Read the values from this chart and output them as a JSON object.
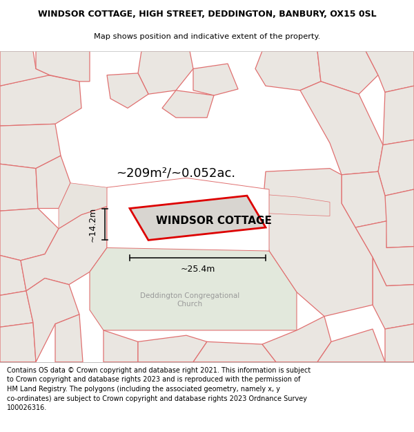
{
  "title_line1": "WINDSOR COTTAGE, HIGH STREET, DEDDINGTON, BANBURY, OX15 0SL",
  "title_line2": "Map shows position and indicative extent of the property.",
  "footer_text": "Contains OS data © Crown copyright and database right 2021. This information is subject to Crown copyright and database rights 2023 and is reproduced with the permission of HM Land Registry. The polygons (including the associated geometry, namely x, y co-ordinates) are subject to Crown copyright and database rights 2023 Ordnance Survey 100026316.",
  "map_bg": "#f2eeea",
  "parcel_fill": "#eae6e1",
  "parcel_edge": "#e07070",
  "green_fill": "#e2e8dc",
  "green_edge": "#c8c8c8",
  "building_fill": "#d8d5d0",
  "red_color": "#dd0000",
  "dim_color": "#111111",
  "area_text": "~209m²/~0.052ac.",
  "width_text": "~25.4m",
  "height_text": "~14.2m",
  "property_label": "WINDSOR COTTAGE",
  "church_label": "Deddington Congregational\nChurch",
  "title_fontsize": 9.0,
  "subtitle_fontsize": 8.2,
  "footer_fontsize": 7.0,
  "label_fontsize": 11,
  "area_fontsize": 13,
  "dim_fontsize": 9,
  "church_fontsize": 7.5
}
